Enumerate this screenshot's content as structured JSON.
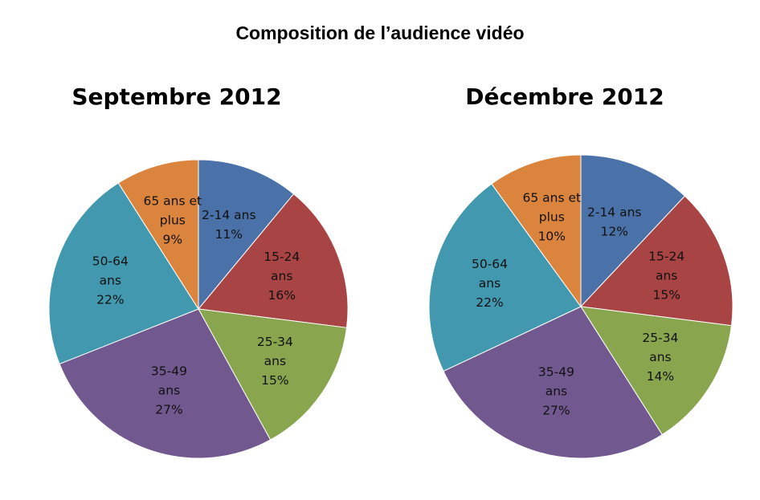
{
  "title": "Composition de l’audience vidéo",
  "chart_data": [
    {
      "type": "pie",
      "title": "Septembre 2012",
      "slices": [
        {
          "label": "2-14 ans",
          "value": 11,
          "display": "11%",
          "color": "#4a72a8"
        },
        {
          "label": "15-24 ans",
          "value": 16,
          "display": "16%",
          "color": "#a84444"
        },
        {
          "label": "25-34 ans",
          "value": 15,
          "display": "15%",
          "color": "#89a54e"
        },
        {
          "label": "35-49 ans",
          "value": 27,
          "display": "27%",
          "color": "#71588f"
        },
        {
          "label": "50-64 ans",
          "value": 22,
          "display": "22%",
          "color": "#4198af"
        },
        {
          "label": "65 ans et plus",
          "value": 9,
          "display": "9%",
          "color": "#db843d"
        }
      ]
    },
    {
      "type": "pie",
      "title": "Décembre 2012",
      "slices": [
        {
          "label": "2-14 ans",
          "value": 12,
          "display": "12%",
          "color": "#4a72a8"
        },
        {
          "label": "15-24 ans",
          "value": 15,
          "display": "15%",
          "color": "#a84444"
        },
        {
          "label": "25-34 ans",
          "value": 14,
          "display": "14%",
          "color": "#89a54e"
        },
        {
          "label": "35-49 ans",
          "value": 27,
          "display": "27%",
          "color": "#71588f"
        },
        {
          "label": "50-64 ans",
          "value": 22,
          "display": "22%",
          "color": "#4198af"
        },
        {
          "label": "65 ans et plus",
          "value": 10,
          "display": "10%",
          "color": "#db843d"
        }
      ]
    }
  ]
}
